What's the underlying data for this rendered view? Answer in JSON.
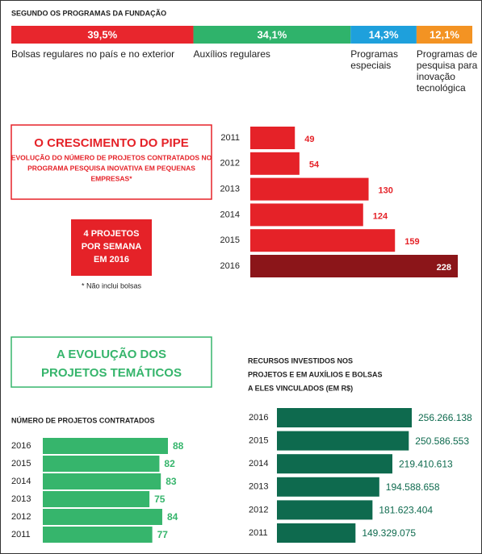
{
  "chart_data": [
    {
      "type": "stacked100",
      "title": "SEGUNDO OS PROGRAMAS DA FUNDAÇÃO",
      "series": [
        {
          "name": "Bolsas regulares no país e no exterior",
          "color": "#e8262d",
          "values": [
            39.5
          ],
          "value_labels": [
            "39,5%"
          ]
        },
        {
          "name": "Auxílios regulares",
          "color": "#2fb36b",
          "values": [
            34.1
          ],
          "value_labels": [
            "34,1%"
          ]
        },
        {
          "name": "Programas especiais",
          "color": "#1ea0dc",
          "values": [
            14.3
          ],
          "value_labels": [
            "14,3%"
          ]
        },
        {
          "name": "Programas de pesquisa para inovação tecnológica",
          "color": "#f39323",
          "values": [
            12.1
          ],
          "value_labels": [
            "12,1%"
          ]
        }
      ]
    },
    {
      "type": "hbar",
      "title": "O CRESCIMENTO DO PIPE",
      "subtitle": [
        "EVOLUÇÃO DO NÚMERO DE PROJETOS CONTRATADOS NO",
        "PROGRAMA PESQUISA INOVATIVA EM PEQUENAS",
        "EMPRESAS*"
      ],
      "annotation": [
        "4 PROJETOS",
        "POR SEMANA",
        "EM 2016"
      ],
      "note": "* Não inclui bolsas",
      "categories": [
        "2011",
        "2012",
        "2013",
        "2014",
        "2015",
        "2016"
      ],
      "values": [
        49,
        54,
        130,
        124,
        159,
        228
      ],
      "colors": [
        "#e52228",
        "#e52228",
        "#e52228",
        "#e52228",
        "#e52228",
        "#8b1519"
      ]
    },
    {
      "type": "hbar",
      "heading": [
        "A EVOLUÇÃO DOS",
        "PROJETOS TEMÁTICOS"
      ],
      "title": "NÚMERO DE PROJETOS CONTRATADOS",
      "categories": [
        "2016",
        "2015",
        "2014",
        "2013",
        "2012",
        "2011"
      ],
      "values": [
        88,
        82,
        83,
        75,
        84,
        77
      ],
      "color": "#36b56c"
    },
    {
      "type": "hbar",
      "title": [
        "RECURSOS INVESTIDOS NOS",
        "PROJETOS E EM AUXÍLIOS E BOLSAS",
        "A ELES VINCULADOS (EM R$)"
      ],
      "categories": [
        "2016",
        "2015",
        "2014",
        "2013",
        "2012",
        "2011"
      ],
      "values": [
        256266138,
        250586553,
        219410613,
        194588658,
        181623404,
        149329075
      ],
      "value_labels": [
        "256.266.138",
        "250.586.553",
        "219.410.613",
        "194.588.658",
        "181.623.404",
        "149.329.075"
      ],
      "color": "#0e6a4e"
    }
  ]
}
